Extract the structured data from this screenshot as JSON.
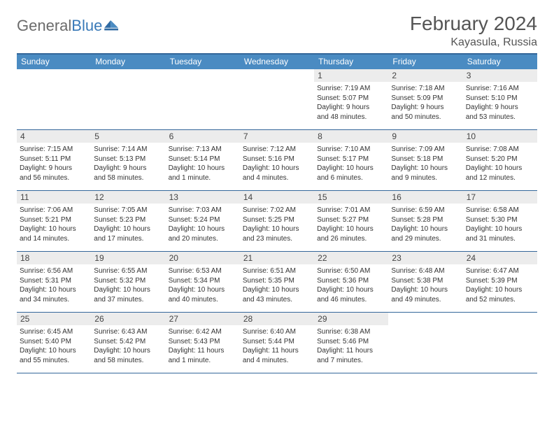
{
  "logo": {
    "text_gray": "General",
    "text_blue": "Blue"
  },
  "title": "February 2024",
  "location": "Kayasula, Russia",
  "colors": {
    "header_bar": "#4a8bc2",
    "header_border": "#34679a",
    "date_bg": "#ececec",
    "text": "#333333"
  },
  "weekdays": [
    "Sunday",
    "Monday",
    "Tuesday",
    "Wednesday",
    "Thursday",
    "Friday",
    "Saturday"
  ],
  "weeks": [
    [
      null,
      null,
      null,
      null,
      {
        "d": "1",
        "sunrise": "7:19 AM",
        "sunset": "5:07 PM",
        "dl1": "Daylight: 9 hours",
        "dl2": "and 48 minutes."
      },
      {
        "d": "2",
        "sunrise": "7:18 AM",
        "sunset": "5:09 PM",
        "dl1": "Daylight: 9 hours",
        "dl2": "and 50 minutes."
      },
      {
        "d": "3",
        "sunrise": "7:16 AM",
        "sunset": "5:10 PM",
        "dl1": "Daylight: 9 hours",
        "dl2": "and 53 minutes."
      }
    ],
    [
      {
        "d": "4",
        "sunrise": "7:15 AM",
        "sunset": "5:11 PM",
        "dl1": "Daylight: 9 hours",
        "dl2": "and 56 minutes."
      },
      {
        "d": "5",
        "sunrise": "7:14 AM",
        "sunset": "5:13 PM",
        "dl1": "Daylight: 9 hours",
        "dl2": "and 58 minutes."
      },
      {
        "d": "6",
        "sunrise": "7:13 AM",
        "sunset": "5:14 PM",
        "dl1": "Daylight: 10 hours",
        "dl2": "and 1 minute."
      },
      {
        "d": "7",
        "sunrise": "7:12 AM",
        "sunset": "5:16 PM",
        "dl1": "Daylight: 10 hours",
        "dl2": "and 4 minutes."
      },
      {
        "d": "8",
        "sunrise": "7:10 AM",
        "sunset": "5:17 PM",
        "dl1": "Daylight: 10 hours",
        "dl2": "and 6 minutes."
      },
      {
        "d": "9",
        "sunrise": "7:09 AM",
        "sunset": "5:18 PM",
        "dl1": "Daylight: 10 hours",
        "dl2": "and 9 minutes."
      },
      {
        "d": "10",
        "sunrise": "7:08 AM",
        "sunset": "5:20 PM",
        "dl1": "Daylight: 10 hours",
        "dl2": "and 12 minutes."
      }
    ],
    [
      {
        "d": "11",
        "sunrise": "7:06 AM",
        "sunset": "5:21 PM",
        "dl1": "Daylight: 10 hours",
        "dl2": "and 14 minutes."
      },
      {
        "d": "12",
        "sunrise": "7:05 AM",
        "sunset": "5:23 PM",
        "dl1": "Daylight: 10 hours",
        "dl2": "and 17 minutes."
      },
      {
        "d": "13",
        "sunrise": "7:03 AM",
        "sunset": "5:24 PM",
        "dl1": "Daylight: 10 hours",
        "dl2": "and 20 minutes."
      },
      {
        "d": "14",
        "sunrise": "7:02 AM",
        "sunset": "5:25 PM",
        "dl1": "Daylight: 10 hours",
        "dl2": "and 23 minutes."
      },
      {
        "d": "15",
        "sunrise": "7:01 AM",
        "sunset": "5:27 PM",
        "dl1": "Daylight: 10 hours",
        "dl2": "and 26 minutes."
      },
      {
        "d": "16",
        "sunrise": "6:59 AM",
        "sunset": "5:28 PM",
        "dl1": "Daylight: 10 hours",
        "dl2": "and 29 minutes."
      },
      {
        "d": "17",
        "sunrise": "6:58 AM",
        "sunset": "5:30 PM",
        "dl1": "Daylight: 10 hours",
        "dl2": "and 31 minutes."
      }
    ],
    [
      {
        "d": "18",
        "sunrise": "6:56 AM",
        "sunset": "5:31 PM",
        "dl1": "Daylight: 10 hours",
        "dl2": "and 34 minutes."
      },
      {
        "d": "19",
        "sunrise": "6:55 AM",
        "sunset": "5:32 PM",
        "dl1": "Daylight: 10 hours",
        "dl2": "and 37 minutes."
      },
      {
        "d": "20",
        "sunrise": "6:53 AM",
        "sunset": "5:34 PM",
        "dl1": "Daylight: 10 hours",
        "dl2": "and 40 minutes."
      },
      {
        "d": "21",
        "sunrise": "6:51 AM",
        "sunset": "5:35 PM",
        "dl1": "Daylight: 10 hours",
        "dl2": "and 43 minutes."
      },
      {
        "d": "22",
        "sunrise": "6:50 AM",
        "sunset": "5:36 PM",
        "dl1": "Daylight: 10 hours",
        "dl2": "and 46 minutes."
      },
      {
        "d": "23",
        "sunrise": "6:48 AM",
        "sunset": "5:38 PM",
        "dl1": "Daylight: 10 hours",
        "dl2": "and 49 minutes."
      },
      {
        "d": "24",
        "sunrise": "6:47 AM",
        "sunset": "5:39 PM",
        "dl1": "Daylight: 10 hours",
        "dl2": "and 52 minutes."
      }
    ],
    [
      {
        "d": "25",
        "sunrise": "6:45 AM",
        "sunset": "5:40 PM",
        "dl1": "Daylight: 10 hours",
        "dl2": "and 55 minutes."
      },
      {
        "d": "26",
        "sunrise": "6:43 AM",
        "sunset": "5:42 PM",
        "dl1": "Daylight: 10 hours",
        "dl2": "and 58 minutes."
      },
      {
        "d": "27",
        "sunrise": "6:42 AM",
        "sunset": "5:43 PM",
        "dl1": "Daylight: 11 hours",
        "dl2": "and 1 minute."
      },
      {
        "d": "28",
        "sunrise": "6:40 AM",
        "sunset": "5:44 PM",
        "dl1": "Daylight: 11 hours",
        "dl2": "and 4 minutes."
      },
      {
        "d": "29",
        "sunrise": "6:38 AM",
        "sunset": "5:46 PM",
        "dl1": "Daylight: 11 hours",
        "dl2": "and 7 minutes."
      },
      null,
      null
    ]
  ],
  "labels": {
    "sunrise": "Sunrise:",
    "sunset": "Sunset:"
  }
}
